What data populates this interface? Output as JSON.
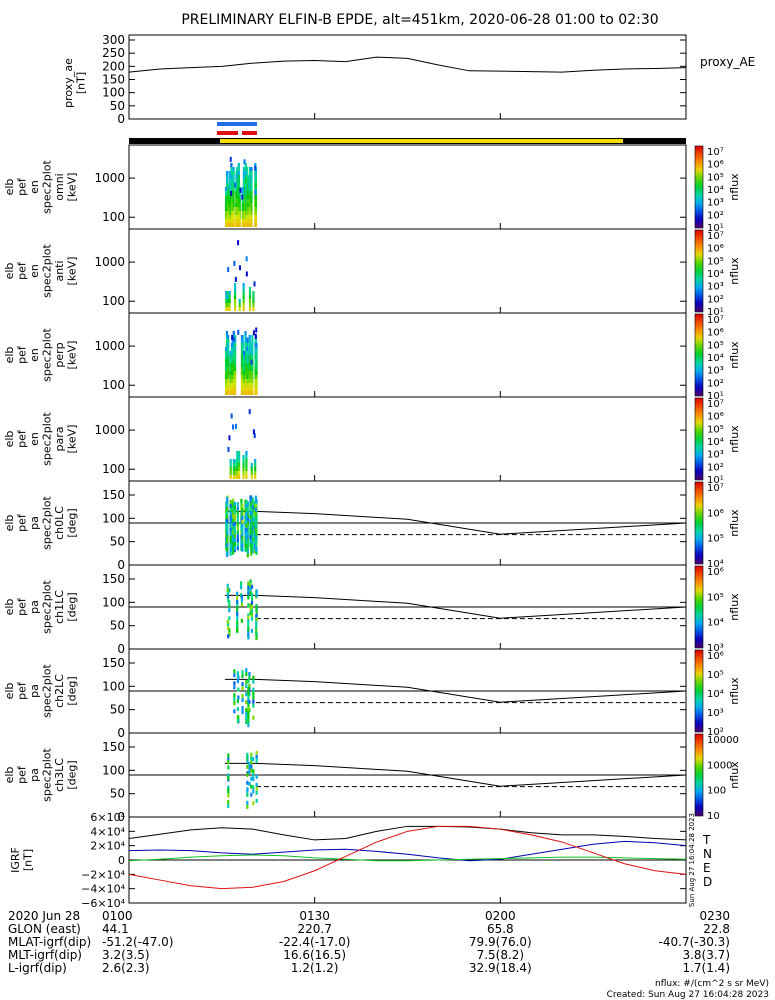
{
  "title": "PRELIMINARY ELFIN-B EPDE, alt=451km, 2020-06-28 01:00 to 02:30",
  "colors": {
    "black": "#000000",
    "yellow": "#f5dc00",
    "blue": "#1e6fe8",
    "red": "#e01010",
    "green": "#10c020",
    "darkblue": "#0000b0"
  },
  "chart_data": [
    {
      "type": "line",
      "panel": "proxy_ae",
      "ylabel_lines": [
        "proxy_ae",
        "[nT]"
      ],
      "series": [
        {
          "name": "proxy_AE",
          "x_minutes": [
            0,
            5,
            10,
            15,
            20,
            25,
            30,
            35,
            40,
            45,
            50,
            55,
            60,
            65,
            70,
            75,
            80,
            85,
            90
          ],
          "values": [
            178,
            190,
            195,
            200,
            212,
            220,
            222,
            218,
            235,
            230,
            205,
            183,
            182,
            180,
            178,
            185,
            190,
            192,
            195
          ]
        }
      ],
      "ylim": [
        0,
        300
      ],
      "yticks": [
        "0",
        "50",
        "100",
        "150",
        "200",
        "250",
        "300"
      ]
    },
    {
      "type": "heatmap",
      "panel": "elb_pef_en_spec2plot_omni",
      "ylabel_lines": [
        "elb",
        "pef",
        "en",
        "spec2plot",
        "omni",
        "[keV]"
      ],
      "ylog": true,
      "ylim": [
        50,
        7000
      ],
      "yticks": [
        "100",
        "1000"
      ],
      "colorbar": {
        "label": "nflux",
        "ticks": [
          "10⁷",
          "10⁶",
          "10⁵",
          "10⁴",
          "10³",
          "10²",
          "10¹"
        ]
      },
      "active_minutes": [
        15.5,
        20.5
      ]
    },
    {
      "type": "heatmap",
      "panel": "elb_pef_en_spec2plot_anti",
      "ylabel_lines": [
        "elb",
        "pef",
        "en",
        "spec2plot",
        "anti",
        "[keV]"
      ],
      "ylog": true,
      "ylim": [
        50,
        7000
      ],
      "yticks": [
        "100",
        "1000"
      ],
      "colorbar": {
        "label": "nflux",
        "ticks": [
          "10⁷",
          "10⁶",
          "10⁵",
          "10⁴",
          "10³",
          "10²",
          "10¹"
        ]
      },
      "active_minutes": [
        15.5,
        20.5
      ]
    },
    {
      "type": "heatmap",
      "panel": "elb_pef_en_spec2plot_perp",
      "ylabel_lines": [
        "elb",
        "pef",
        "en",
        "spec2plot",
        "perp",
        "[keV]"
      ],
      "ylog": true,
      "ylim": [
        50,
        7000
      ],
      "yticks": [
        "100",
        "1000"
      ],
      "colorbar": {
        "label": "nflux",
        "ticks": [
          "10⁷",
          "10⁶",
          "10⁵",
          "10⁴",
          "10³",
          "10²",
          "10¹"
        ]
      },
      "active_minutes": [
        15.5,
        20.5
      ]
    },
    {
      "type": "heatmap",
      "panel": "elb_pef_en_spec2plot_para",
      "ylabel_lines": [
        "elb",
        "pef",
        "en",
        "spec2plot",
        "para",
        "[keV]"
      ],
      "ylog": true,
      "ylim": [
        50,
        7000
      ],
      "yticks": [
        "100",
        "1000"
      ],
      "colorbar": {
        "label": "nflux",
        "ticks": [
          "10⁷",
          "10⁶",
          "10⁵",
          "10⁴",
          "10³",
          "10²",
          "10¹"
        ]
      },
      "active_minutes": [
        15.5,
        20.5
      ]
    },
    {
      "type": "heatmap",
      "panel": "elb_pef_pa_spec2plot_ch0LC",
      "ylabel_lines": [
        "elb",
        "pef",
        "pa",
        "spec2plot",
        "ch0LC",
        "[deg]"
      ],
      "ylim": [
        0,
        180
      ],
      "yticks": [
        "0",
        "50",
        "100",
        "150"
      ],
      "reference_line": 90,
      "colorbar": {
        "label": "nflux",
        "ticks": [
          "10⁷",
          "10⁶",
          "10⁵",
          "10⁴"
        ]
      },
      "active_minutes": [
        15.5,
        20.5
      ]
    },
    {
      "type": "heatmap",
      "panel": "elb_pef_pa_spec2plot_ch1LC",
      "ylabel_lines": [
        "elb",
        "pef",
        "pa",
        "spec2plot",
        "ch1LC",
        "[deg]"
      ],
      "ylim": [
        0,
        180
      ],
      "yticks": [
        "0",
        "50",
        "100",
        "150"
      ],
      "reference_line": 90,
      "colorbar": {
        "label": "nflux",
        "ticks": [
          "10⁶",
          "10⁵",
          "10⁴",
          "10³"
        ]
      },
      "active_minutes": [
        15.5,
        20.5
      ]
    },
    {
      "type": "heatmap",
      "panel": "elb_pef_pa_spec2plot_ch2LC",
      "ylabel_lines": [
        "elb",
        "pef",
        "pa",
        "spec2plot",
        "ch2LC",
        "[deg]"
      ],
      "ylim": [
        0,
        180
      ],
      "yticks": [
        "0",
        "50",
        "100",
        "150"
      ],
      "reference_line": 90,
      "colorbar": {
        "label": "nflux",
        "ticks": [
          "10⁶",
          "10⁵",
          "10⁴",
          "10³",
          "10²"
        ]
      },
      "active_minutes": [
        15.5,
        20.5
      ]
    },
    {
      "type": "heatmap",
      "panel": "elb_pef_pa_spec2plot_ch3LC",
      "ylabel_lines": [
        "elb",
        "pef",
        "pa",
        "spec2plot",
        "ch3LC",
        "[deg]"
      ],
      "ylim": [
        0,
        180
      ],
      "yticks": [
        "0",
        "50",
        "100",
        "150"
      ],
      "reference_line": 90,
      "colorbar": {
        "label": "nflux",
        "ticks": [
          "10000",
          "1000",
          "100",
          "10"
        ]
      },
      "active_minutes": [
        15.5,
        20.5
      ]
    },
    {
      "type": "line",
      "panel": "IGRF",
      "ylabel_lines": [
        "IGRF",
        "[nT]"
      ],
      "ylim": [
        -60000,
        60000
      ],
      "yticks": [
        "6×10⁴",
        "4×10⁴",
        "2×10⁴",
        "0",
        "−2×10⁴",
        "−4×10⁴",
        "−6×10⁴"
      ],
      "x_minutes": [
        0,
        5,
        10,
        15,
        20,
        25,
        30,
        35,
        40,
        45,
        50,
        55,
        60,
        65,
        70,
        75,
        80,
        85,
        90
      ],
      "series": [
        {
          "name": "T",
          "values": [
            30000,
            36000,
            42000,
            45000,
            43000,
            35000,
            28000,
            30000,
            40000,
            47000,
            47000,
            46000,
            43000,
            38000,
            35000,
            35000,
            33000,
            30000,
            28000
          ]
        },
        {
          "name": "N",
          "values": [
            13000,
            14000,
            13000,
            10000,
            8000,
            11000,
            14000,
            15000,
            12000,
            8000,
            3000,
            -1000,
            1000,
            8000,
            15000,
            22000,
            26000,
            24000,
            20000
          ]
        },
        {
          "name": "E",
          "values": [
            -1000,
            1000,
            4000,
            6000,
            7000,
            6000,
            3000,
            1000,
            -1000,
            -1000,
            0,
            1000,
            2000,
            3000,
            4000,
            4000,
            3000,
            2000,
            1000
          ]
        },
        {
          "name": "D",
          "values": [
            -20000,
            -28000,
            -36000,
            -40000,
            -38000,
            -30000,
            -15000,
            5000,
            25000,
            40000,
            47000,
            47000,
            43000,
            35000,
            25000,
            10000,
            -5000,
            -15000,
            -20000
          ]
        }
      ]
    }
  ],
  "time_axis": {
    "range_minutes": [
      0,
      90
    ],
    "ticks": [
      {
        "minute": 0,
        "label": "0100"
      },
      {
        "minute": 30,
        "label": "0130"
      },
      {
        "minute": 60,
        "label": "0200"
      },
      {
        "minute": 90,
        "label": "0230"
      }
    ]
  },
  "ephemeris": [
    {
      "label": "2020 Jun 28",
      "values": [
        "0100",
        "0130",
        "0200",
        "0230"
      ]
    },
    {
      "label": "GLON (east)",
      "values": [
        "44.1",
        "220.7",
        "65.8",
        "22.8"
      ]
    },
    {
      "label": "MLAT-igrf(dip)",
      "values": [
        "-51.2(-47.0)",
        "-22.4(-17.0)",
        "79.9(76.0)",
        "-40.7(-30.3)"
      ]
    },
    {
      "label": "MLT-igrf(dip)",
      "values": [
        "3.2(3.5)",
        "16.6(16.5)",
        "7.5(8.2)",
        "3.8(3.7)"
      ]
    },
    {
      "label": "L-igrf(dip)",
      "values": [
        "2.6(2.3)",
        "1.2(1.2)",
        "32.9(18.4)",
        "1.7(1.4)"
      ]
    }
  ],
  "footer": {
    "units": "nflux: #/(cm^2 s sr MeV)",
    "created": "Created: Sun Aug 27 16:04:28 2023",
    "side_stamp": "Sun Aug 27 16:04:28 2023"
  }
}
